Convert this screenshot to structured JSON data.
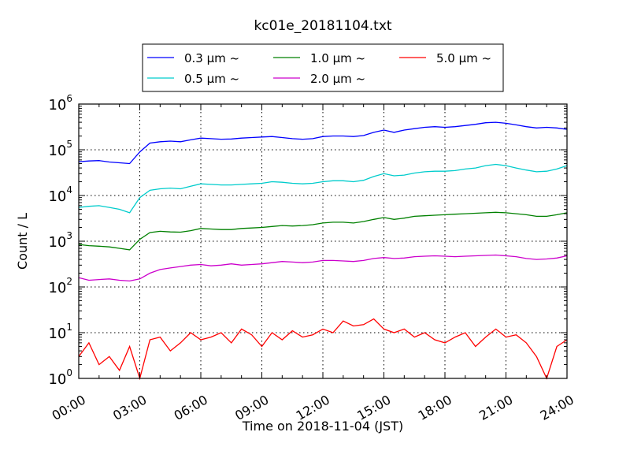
{
  "chart_data": {
    "type": "line",
    "title": "kc01e_20181104.txt",
    "xlabel": "Time on 2018-11-04 (JST)",
    "ylabel": "Count / L",
    "yscale": "log",
    "ylim": [
      1,
      1000000
    ],
    "xlim": [
      0,
      24
    ],
    "grid": true,
    "legend_position": "top-center",
    "x_tick_labels": [
      "00:00",
      "03:00",
      "06:00",
      "09:00",
      "12:00",
      "15:00",
      "18:00",
      "21:00",
      "24:00"
    ],
    "y_tick_labels": [
      {
        "base": "10",
        "exp": "0"
      },
      {
        "base": "10",
        "exp": "1"
      },
      {
        "base": "10",
        "exp": "2"
      },
      {
        "base": "10",
        "exp": "3"
      },
      {
        "base": "10",
        "exp": "4"
      },
      {
        "base": "10",
        "exp": "5"
      },
      {
        "base": "10",
        "exp": "6"
      }
    ],
    "x": [
      0,
      0.5,
      1,
      1.5,
      2,
      2.5,
      3,
      3.5,
      4,
      4.5,
      5,
      5.5,
      6,
      6.5,
      7,
      7.5,
      8,
      8.5,
      9,
      9.5,
      10,
      10.5,
      11,
      11.5,
      12,
      12.5,
      13,
      13.5,
      14,
      14.5,
      15,
      15.5,
      16,
      16.5,
      17,
      17.5,
      18,
      18.5,
      19,
      19.5,
      20,
      20.5,
      21,
      21.5,
      22,
      22.5,
      23,
      23.5,
      24
    ],
    "series": [
      {
        "name": "0.3 μm ~",
        "color": "#0000ff",
        "values": [
          55000,
          57000,
          58000,
          54000,
          52000,
          50000,
          90000,
          140000,
          150000,
          155000,
          150000,
          165000,
          180000,
          175000,
          170000,
          172000,
          180000,
          185000,
          190000,
          195000,
          185000,
          175000,
          170000,
          175000,
          195000,
          200000,
          200000,
          195000,
          205000,
          240000,
          270000,
          240000,
          270000,
          290000,
          310000,
          320000,
          310000,
          320000,
          340000,
          360000,
          390000,
          400000,
          380000,
          350000,
          320000,
          300000,
          310000,
          300000,
          280000
        ]
      },
      {
        "name": "0.5 μm ~",
        "color": "#00cccc",
        "values": [
          5500,
          5800,
          6000,
          5500,
          5000,
          4200,
          9000,
          13000,
          14000,
          14500,
          14000,
          16000,
          18000,
          17500,
          17000,
          17000,
          17500,
          18000,
          18500,
          20000,
          19500,
          18500,
          18000,
          18500,
          20000,
          21000,
          21000,
          20000,
          21500,
          26000,
          30000,
          27000,
          28000,
          31000,
          33000,
          34000,
          34000,
          35000,
          38000,
          40000,
          45000,
          48000,
          45000,
          40000,
          36000,
          33000,
          34000,
          38000,
          45000
        ]
      },
      {
        "name": "1.0 μm ~",
        "color": "#008000",
        "values": [
          850,
          800,
          780,
          750,
          700,
          650,
          1100,
          1550,
          1650,
          1600,
          1580,
          1700,
          1900,
          1850,
          1800,
          1800,
          1900,
          1950,
          2000,
          2100,
          2200,
          2150,
          2200,
          2300,
          2500,
          2600,
          2600,
          2500,
          2700,
          3000,
          3300,
          3000,
          3200,
          3500,
          3600,
          3700,
          3800,
          3900,
          4000,
          4100,
          4200,
          4300,
          4200,
          4000,
          3800,
          3500,
          3500,
          3800,
          4200
        ]
      },
      {
        "name": "2.0 μm ~",
        "color": "#cc00cc",
        "values": [
          160,
          140,
          145,
          150,
          140,
          135,
          150,
          200,
          240,
          260,
          280,
          300,
          310,
          290,
          300,
          320,
          300,
          310,
          320,
          340,
          360,
          350,
          340,
          350,
          380,
          380,
          370,
          360,
          380,
          420,
          440,
          420,
          430,
          460,
          470,
          480,
          470,
          460,
          470,
          480,
          490,
          500,
          480,
          460,
          420,
          400,
          410,
          430,
          480
        ]
      },
      {
        "name": "5.0 μm ~",
        "color": "#ff0000",
        "values": [
          3,
          6,
          2,
          3,
          1.5,
          5,
          1,
          7,
          8,
          4,
          6,
          10,
          7,
          8,
          10,
          6,
          12,
          9,
          5,
          10,
          7,
          11,
          8,
          9,
          12,
          10,
          18,
          14,
          15,
          20,
          12,
          10,
          12,
          8,
          10,
          7,
          6,
          8,
          10,
          5,
          8,
          12,
          8,
          9,
          6,
          3,
          1,
          5,
          7
        ]
      }
    ]
  }
}
